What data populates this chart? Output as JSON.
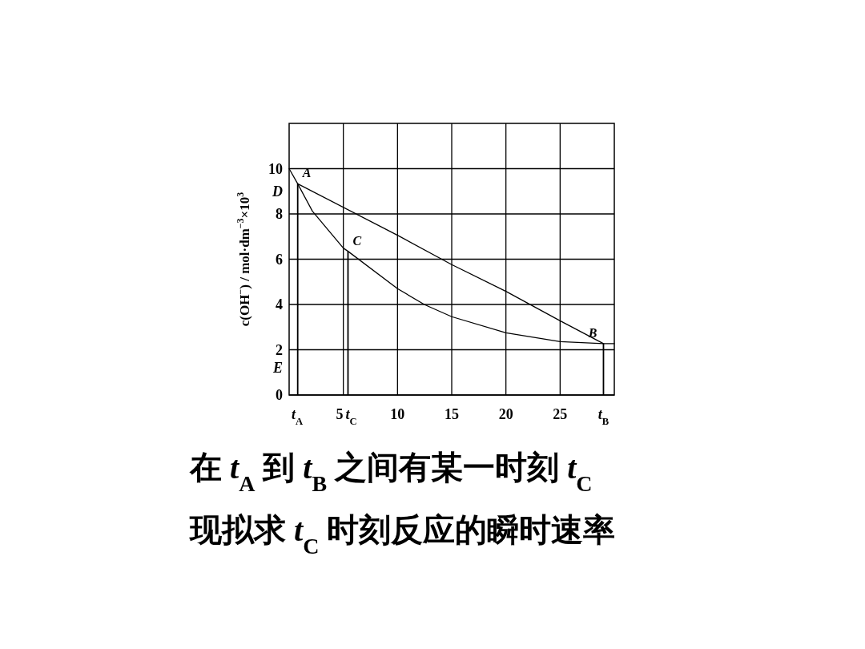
{
  "chart_data": {
    "type": "line",
    "ylabel": "c(OH$^{−}$) / mol·dm$^{−3}$×10$^{3}$",
    "xlim": [
      0,
      30
    ],
    "ylim": [
      0,
      12
    ],
    "xticks": [
      {
        "value": 0.75,
        "label": "t$_{A}$"
      },
      5,
      {
        "value": 5.4,
        "label": "t$_{C}$"
      },
      10,
      15,
      20,
      25,
      {
        "value": 29,
        "label": "t$_{B}$"
      }
    ],
    "yticks": [
      0,
      {
        "value": 1.2,
        "label": "E"
      },
      2,
      4,
      6,
      8,
      {
        "value": 9.0,
        "label": "D"
      },
      10
    ],
    "grid": true,
    "series": [
      {
        "color": "#000000",
        "x": [
          0,
          0.79,
          2.15,
          5,
          5.43,
          10,
          12.5,
          15,
          20,
          25,
          29,
          30
        ],
        "values": [
          10,
          9.33,
          8.12,
          6.49,
          6.35,
          4.7,
          3.99,
          3.46,
          2.75,
          2.36,
          2.27,
          2.27
        ]
      },
      {
        "color": "#000000",
        "x": [
          0.79,
          10,
          15,
          20,
          25,
          29
        ],
        "values": [
          9.33,
          7.06,
          5.76,
          4.58,
          3.28,
          2.27
        ]
      },
      {
        "type": "bar",
        "color": "#000000",
        "x": [
          0.79,
          5.43,
          29
        ],
        "values": [
          9.33,
          6.35,
          2.27
        ]
      }
    ],
    "annotations": [
      {
        "text": "A",
        "x": 0.79,
        "y": 9.33
      },
      {
        "text": "C",
        "x": 5.43,
        "y": 6.35
      },
      {
        "text": "B",
        "x": 29,
        "y": 2.27
      },
      "在 t$_{A}$ 到 t$_{B}$ 之间有某一时刻 t$_{C}$",
      "现拟求 t$_{C}$ 时刻反应的瞬时速率"
    ]
  }
}
